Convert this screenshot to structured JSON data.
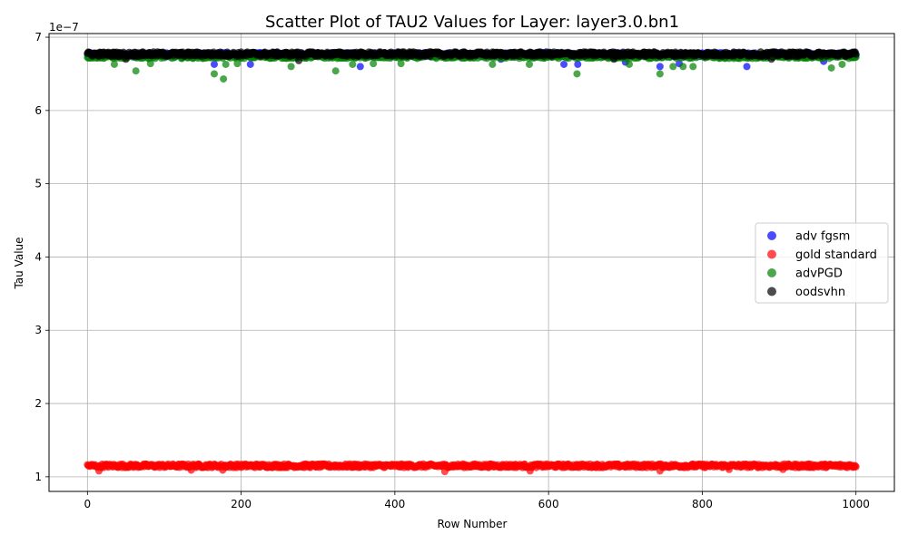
{
  "chart_data": {
    "type": "scatter",
    "title": "Scatter Plot of TAU2 Values for Layer: layer3.0.bn1",
    "xlabel": "Row Number",
    "ylabel": "Tau Value",
    "offset_text": "1e−7",
    "scale_exponent": -7,
    "xlim": [
      -50,
      1050
    ],
    "ylim": [
      8e-08,
      7.05e-07
    ],
    "x_ticks": [
      0,
      200,
      400,
      600,
      800,
      1000
    ],
    "x_tick_labels": [
      "0",
      "200",
      "400",
      "600",
      "800",
      "1000"
    ],
    "y_ticks": [
      1e-07,
      2e-07,
      3e-07,
      4e-07,
      5e-07,
      6e-07,
      7e-07
    ],
    "y_tick_labels": [
      "1",
      "2",
      "3",
      "4",
      "5",
      "6",
      "7"
    ],
    "grid": true,
    "legend_position": "center-right",
    "n_points": 1001,
    "series": [
      {
        "name": "adv fgsm",
        "color": "#0000ff",
        "base": 6.76e-07,
        "dips": [
          [
            165,
            6.63e-07
          ],
          [
            212,
            6.63e-07
          ],
          [
            355,
            6.6e-07
          ],
          [
            538,
            6.7e-07
          ],
          [
            620,
            6.63e-07
          ],
          [
            638,
            6.63e-07
          ],
          [
            700,
            6.66e-07
          ],
          [
            745,
            6.6e-07
          ],
          [
            770,
            6.64e-07
          ],
          [
            858,
            6.6e-07
          ],
          [
            958,
            6.67e-07
          ]
        ]
      },
      {
        "name": "gold standard",
        "color": "#ff0000",
        "base": 1.15e-07,
        "dips": [
          [
            15,
            1.08e-07
          ],
          [
            135,
            1.09e-07
          ],
          [
            176,
            1.09e-07
          ],
          [
            465,
            1.07e-07
          ],
          [
            576,
            1.08e-07
          ],
          [
            745,
            1.08e-07
          ],
          [
            835,
            1.1e-07
          ],
          [
            905,
            1.1e-07
          ]
        ]
      },
      {
        "name": "advPGD",
        "color": "#008000",
        "base": 6.74e-07,
        "dips": [
          [
            35,
            6.63e-07
          ],
          [
            63,
            6.54e-07
          ],
          [
            82,
            6.64e-07
          ],
          [
            165,
            6.5e-07
          ],
          [
            177,
            6.43e-07
          ],
          [
            180,
            6.63e-07
          ],
          [
            195,
            6.64e-07
          ],
          [
            265,
            6.6e-07
          ],
          [
            323,
            6.54e-07
          ],
          [
            345,
            6.63e-07
          ],
          [
            372,
            6.64e-07
          ],
          [
            408,
            6.64e-07
          ],
          [
            527,
            6.63e-07
          ],
          [
            575,
            6.63e-07
          ],
          [
            637,
            6.5e-07
          ],
          [
            705,
            6.63e-07
          ],
          [
            745,
            6.5e-07
          ],
          [
            762,
            6.6e-07
          ],
          [
            775,
            6.6e-07
          ],
          [
            788,
            6.6e-07
          ],
          [
            968,
            6.58e-07
          ],
          [
            982,
            6.63e-07
          ]
        ]
      },
      {
        "name": "oodsvhn",
        "color": "#000000",
        "base": 6.77e-07,
        "dips": [
          [
            50,
            6.7e-07
          ],
          [
            275,
            6.68e-07
          ],
          [
            685,
            6.7e-07
          ],
          [
            890,
            6.7e-07
          ]
        ]
      }
    ]
  }
}
